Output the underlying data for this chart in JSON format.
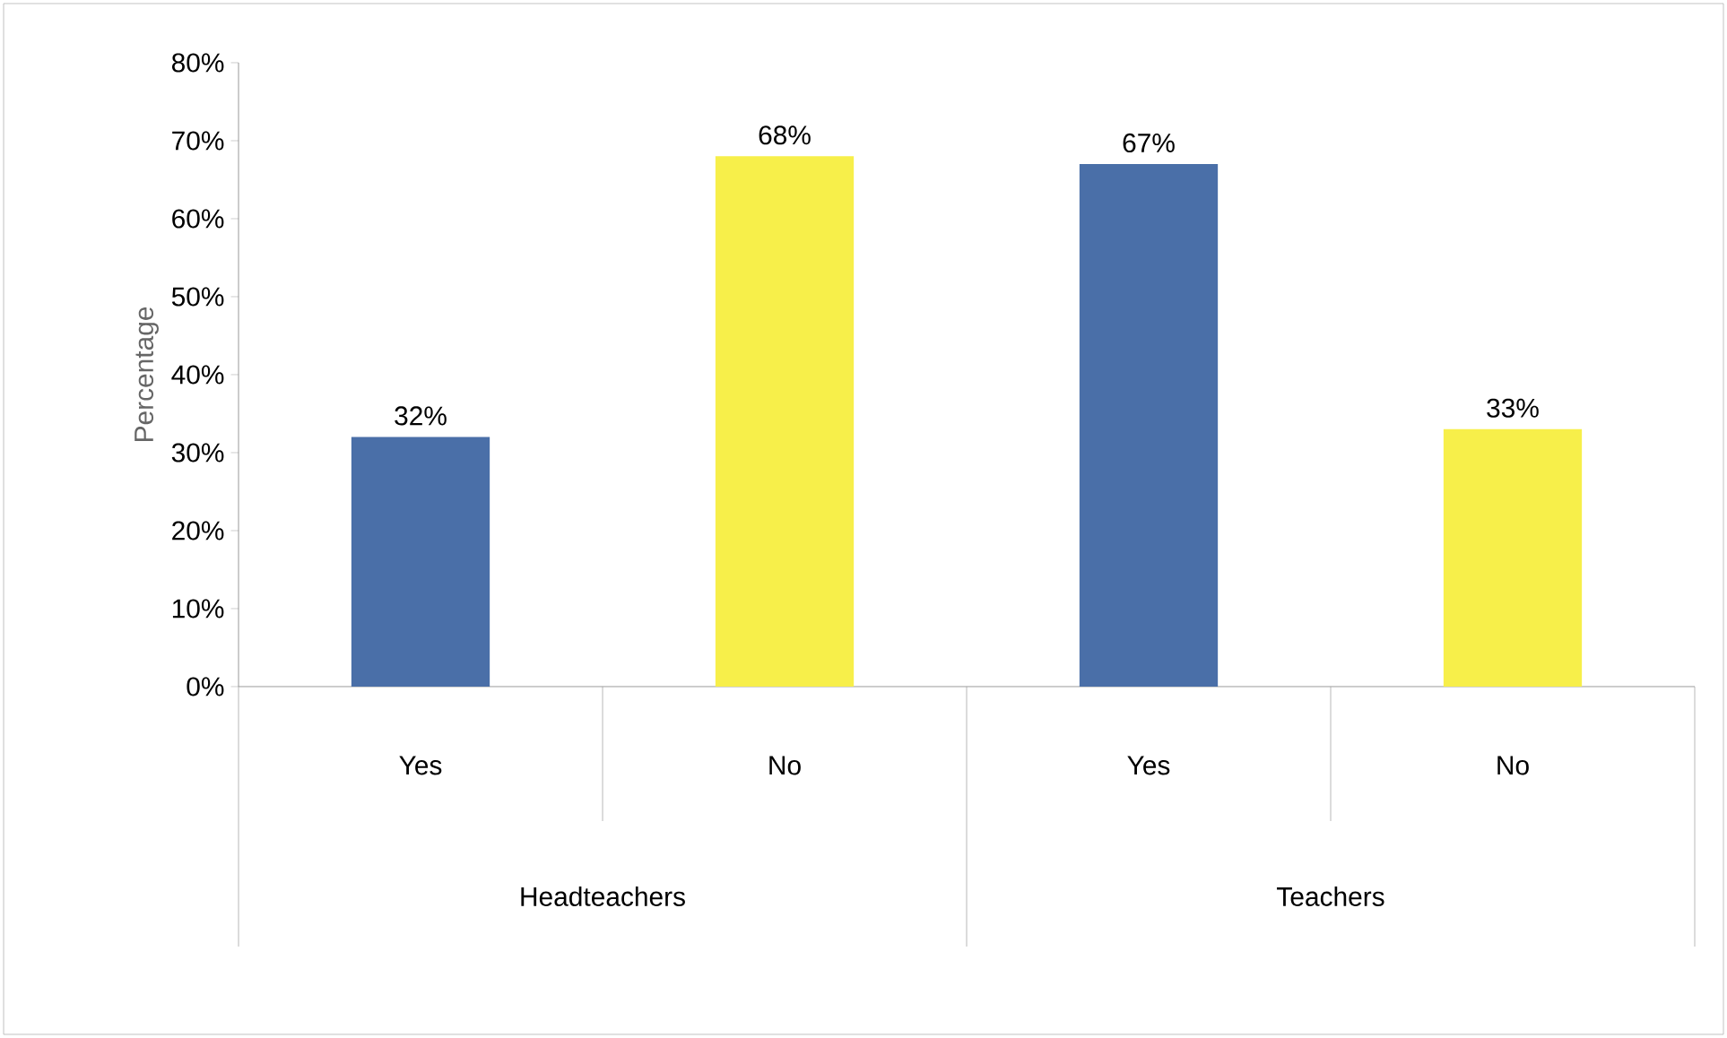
{
  "chart_data": {
    "type": "bar",
    "ylabel": "Percentage",
    "categories": [
      "Yes",
      "No",
      "Yes",
      "No"
    ],
    "values": [
      32,
      68,
      67,
      33
    ],
    "colors": [
      "#4a6fa8",
      "#f7ef4a",
      "#4a6fa8",
      "#f7ef4a"
    ],
    "value_labels": [
      "32%",
      "68%",
      "67%",
      "33%"
    ],
    "annotations": [
      "Headteachers",
      "Teachers"
    ],
    "ylim": [
      0,
      80
    ],
    "yticks": [
      {
        "value": 0,
        "label": "0%"
      },
      {
        "value": 10,
        "label": "10%"
      },
      {
        "value": 20,
        "label": "20%"
      },
      {
        "value": 30,
        "label": "30%"
      },
      {
        "value": 40,
        "label": "40%"
      },
      {
        "value": 50,
        "label": "50%"
      },
      {
        "value": 60,
        "label": "60%"
      },
      {
        "value": 70,
        "label": "70%"
      },
      {
        "value": 80,
        "label": "80%"
      }
    ],
    "grid": false
  }
}
